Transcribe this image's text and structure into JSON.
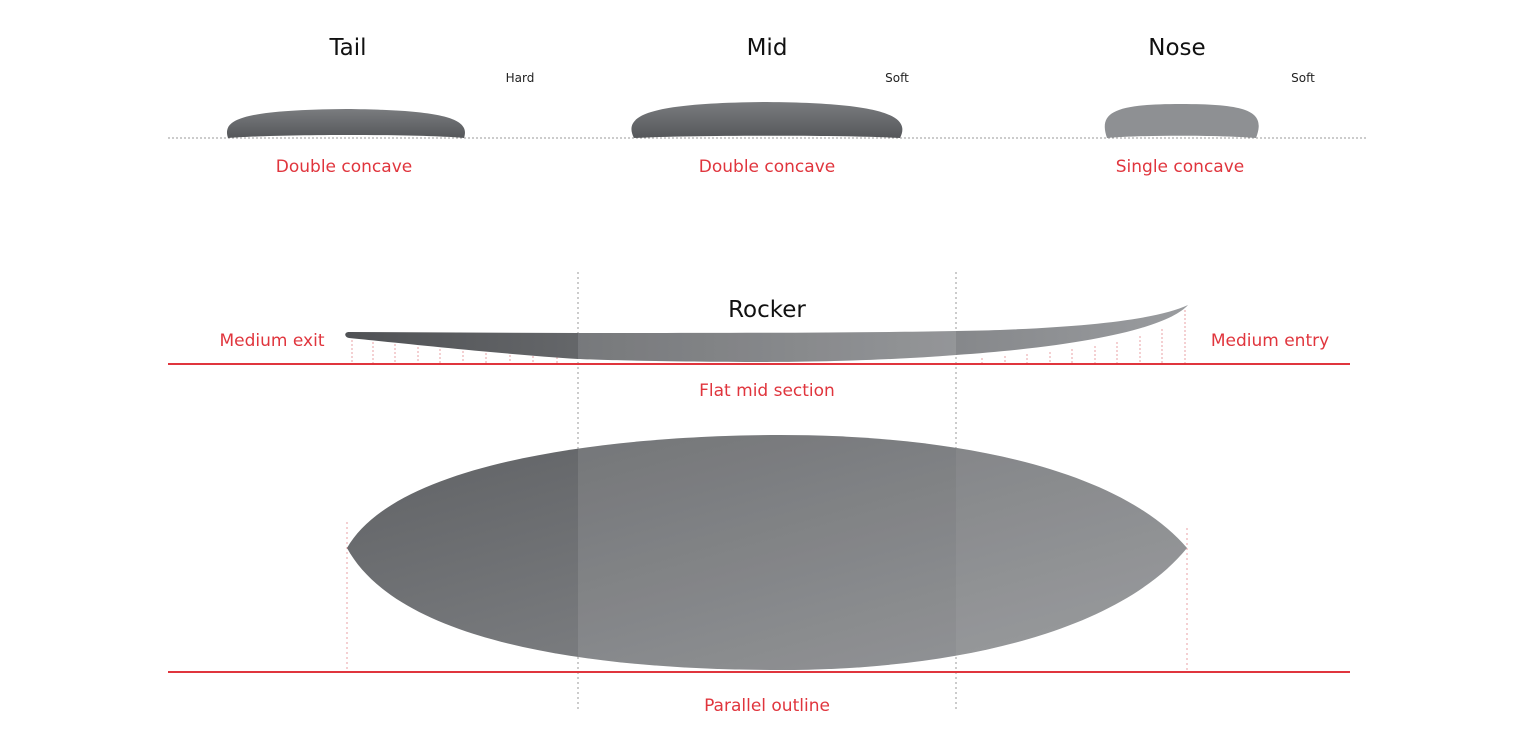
{
  "colors": {
    "accent": "#e0353d",
    "board": "#6b6d70"
  },
  "sections": [
    {
      "title": "Tail",
      "rail": "Hard",
      "concave": "Double concave"
    },
    {
      "title": "Mid",
      "rail": "Soft",
      "concave": "Double concave"
    },
    {
      "title": "Nose",
      "rail": "Soft",
      "concave": "Single concave"
    }
  ],
  "rocker": {
    "title": "Rocker",
    "exit": "Medium exit",
    "entry": "Medium entry",
    "mid": "Flat mid section"
  },
  "outline": {
    "label": "Parallel outline"
  }
}
